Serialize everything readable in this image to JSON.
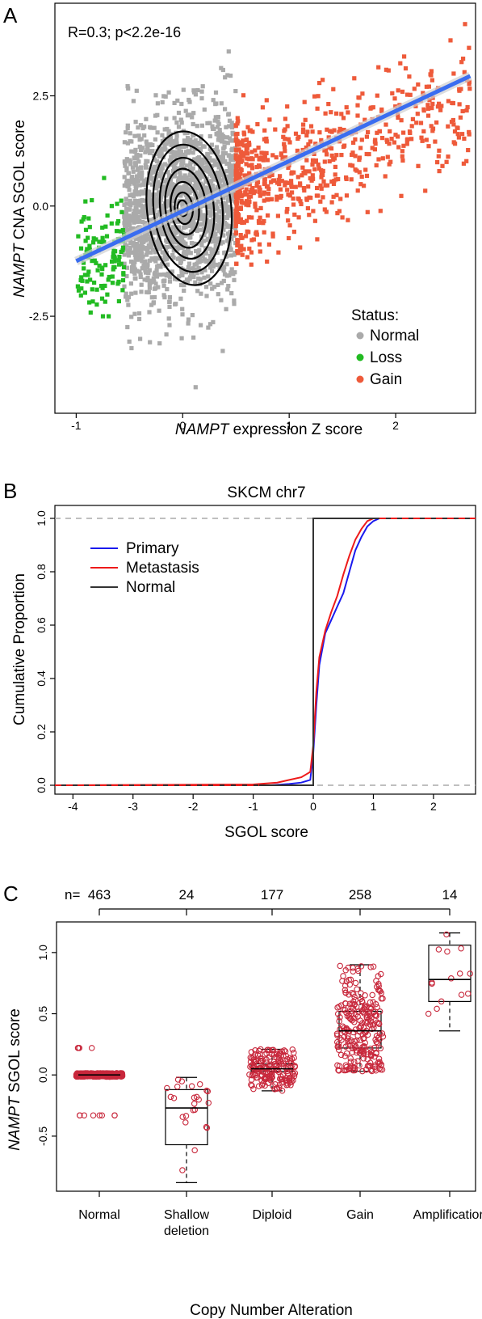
{
  "panels": {
    "a_label": "A",
    "b_label": "B",
    "c_label": "C"
  },
  "chart_data": [
    {
      "type": "scatter",
      "annotation": "R=0.3; p<2.2e-16",
      "xlabel_italic": "NAMPT",
      "xlabel_rest": " expression Z score",
      "ylabel_italic": "NAMPT",
      "ylabel_rest": " CNA SGOL score",
      "xlim": [
        -1.2,
        2.75
      ],
      "ylim": [
        -4.7,
        4.6
      ],
      "xticks": [
        "-1",
        "0",
        "1",
        "2"
      ],
      "xtick_values": [
        -1,
        0,
        1,
        2
      ],
      "yticks": [
        "-2.5",
        "0.0",
        "2.5"
      ],
      "ytick_values": [
        -2.5,
        0,
        2.5
      ],
      "legend": {
        "title": "Status:",
        "placement": "bottom-right",
        "items": [
          {
            "label": "Normal",
            "color": "#aaaaaa"
          },
          {
            "label": "Loss",
            "color": "#22bb22"
          },
          {
            "label": "Gain",
            "color": "#ee5a3a"
          }
        ]
      },
      "regression_line": {
        "x": [
          -1.0,
          2.7
        ],
        "y": [
          -1.25,
          2.95
        ],
        "color": "#3a6df0"
      },
      "contour_color": "#000000",
      "series": [
        {
          "name": "Normal",
          "color": "#aaaaaa",
          "x_range": [
            -0.55,
            0.5
          ],
          "y_center": 0,
          "approx_points": 1800
        },
        {
          "name": "Loss",
          "color": "#22bb22",
          "x_range": [
            -1.0,
            -0.55
          ],
          "y_center": -1.2,
          "approx_points": 120
        },
        {
          "name": "Gain",
          "color": "#ee5a3a",
          "x_range": [
            0.5,
            2.7
          ],
          "y_center": 0.3,
          "approx_points": 700
        }
      ]
    },
    {
      "type": "line",
      "title": "SKCM chr7",
      "xlabel": "SGOL score",
      "ylabel": "Cumulative Proportion",
      "xlim": [
        -4.3,
        2.7
      ],
      "ylim": [
        0,
        1
      ],
      "xticks": [
        "-4",
        "-3",
        "-2",
        "-1",
        "0",
        "1",
        "2"
      ],
      "xtick_values": [
        -4,
        -3,
        -2,
        -1,
        0,
        1,
        2
      ],
      "yticks": [
        "0.0",
        "0.2",
        "0.4",
        "0.6",
        "0.8",
        "1.0"
      ],
      "ytick_values": [
        0,
        0.2,
        0.4,
        0.6,
        0.8,
        1.0
      ],
      "legend": {
        "placement": "top-left",
        "items": [
          {
            "label": "Primary",
            "color": "#1a1aee"
          },
          {
            "label": "Metastasis",
            "color": "#ee1a1a"
          },
          {
            "label": "Normal",
            "color": "#333333"
          }
        ]
      },
      "series": [
        {
          "name": "Primary",
          "color": "#1a1aee",
          "x": [
            -4.3,
            -0.7,
            -0.4,
            -0.2,
            -0.05,
            0,
            0.05,
            0.1,
            0.2,
            0.3,
            0.4,
            0.5,
            0.6,
            0.7,
            0.8,
            0.9,
            1.0,
            1.1,
            2.7
          ],
          "y": [
            0,
            0,
            0.005,
            0.01,
            0.02,
            0.12,
            0.3,
            0.45,
            0.57,
            0.62,
            0.67,
            0.72,
            0.8,
            0.88,
            0.93,
            0.97,
            0.99,
            1.0,
            1.0
          ]
        },
        {
          "name": "Metastasis",
          "color": "#ee1a1a",
          "x": [
            -4.3,
            -1.0,
            -0.6,
            -0.4,
            -0.2,
            -0.05,
            0,
            0.05,
            0.1,
            0.2,
            0.3,
            0.4,
            0.5,
            0.6,
            0.7,
            0.8,
            0.9,
            1.0,
            2.7
          ],
          "y": [
            0,
            0.003,
            0.01,
            0.02,
            0.03,
            0.05,
            0.15,
            0.35,
            0.48,
            0.58,
            0.65,
            0.71,
            0.79,
            0.86,
            0.92,
            0.96,
            0.99,
            1.0,
            1.0
          ]
        },
        {
          "name": "Normal",
          "color": "#333333",
          "x": [
            -4.3,
            0,
            0,
            2.7
          ],
          "y": [
            0,
            0,
            1,
            1
          ]
        }
      ]
    },
    {
      "type": "box",
      "xlabel": "Copy Number Alteration",
      "ylabel_italic": "NAMPT",
      "ylabel_rest": " SGOL score",
      "n_prefix": "n=",
      "ylim": [
        -0.95,
        1.25
      ],
      "yticks": [
        "-0.5",
        "0.0",
        "0.5",
        "1.0"
      ],
      "ytick_values": [
        -0.5,
        0,
        0.5,
        1.0
      ],
      "point_color": "#c8283c",
      "categories": [
        {
          "label_lines": [
            "Normal"
          ],
          "n": "463",
          "q1": 0.0,
          "median": 0.0,
          "q3": 0.01,
          "whisker_low": 0.0,
          "whisker_high": 0.01
        },
        {
          "label_lines": [
            "Shallow",
            "deletion"
          ],
          "n": "24",
          "q1": -0.57,
          "median": -0.27,
          "q3": -0.12,
          "whisker_low": -0.88,
          "whisker_high": -0.02
        },
        {
          "label_lines": [
            "Diploid"
          ],
          "n": "177",
          "q1": 0.03,
          "median": 0.05,
          "q3": 0.09,
          "whisker_low": -0.13,
          "whisker_high": 0.21
        },
        {
          "label_lines": [
            "Gain"
          ],
          "n": "258",
          "q1": 0.22,
          "median": 0.36,
          "q3": 0.52,
          "whisker_low": 0.03,
          "whisker_high": 0.9
        },
        {
          "label_lines": [
            "Amplification"
          ],
          "n": "14",
          "q1": 0.6,
          "median": 0.78,
          "q3": 1.06,
          "whisker_low": 0.36,
          "whisker_high": 1.16
        }
      ]
    }
  ]
}
